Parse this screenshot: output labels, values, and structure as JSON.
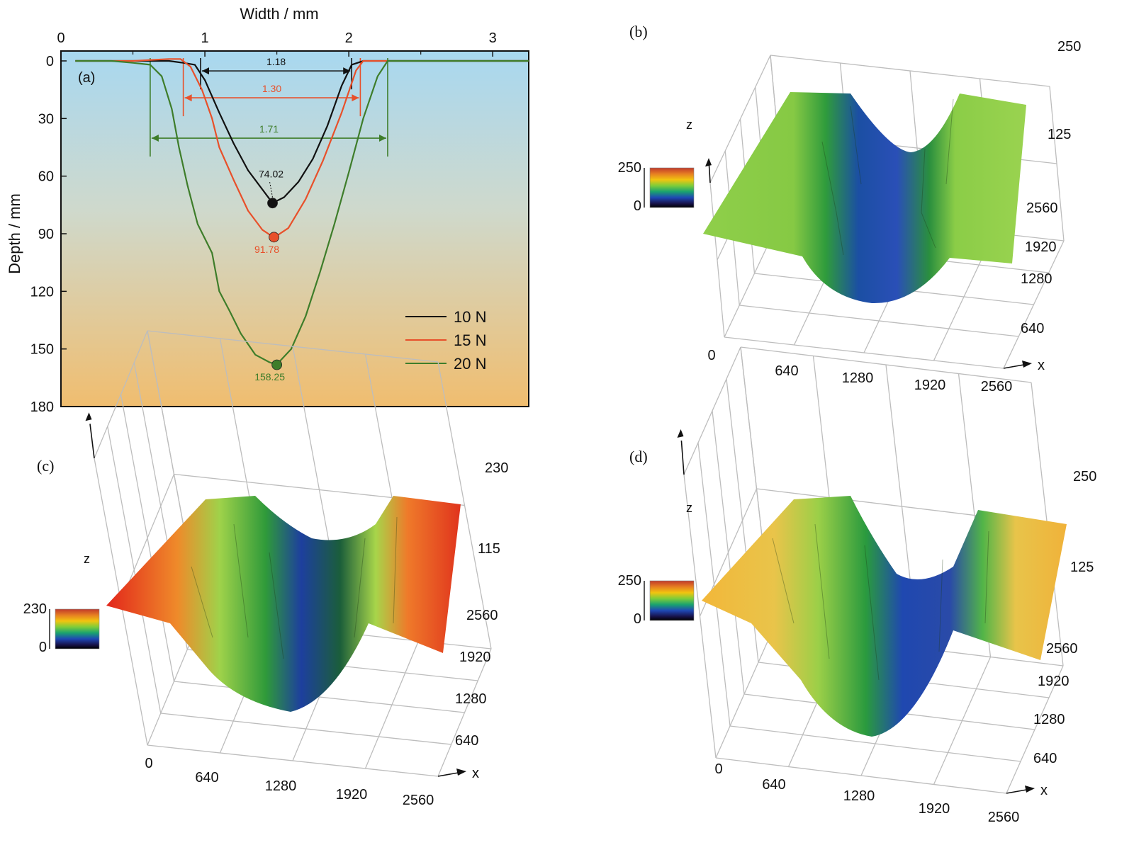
{
  "chart_data": [
    {
      "panel": "(a)",
      "type": "line",
      "xlabel": "Width / mm",
      "ylabel": "Depth / mm",
      "xlim": [
        0,
        3.25
      ],
      "ylim": [
        0,
        180
      ],
      "x_ticks": [
        "0",
        "1",
        "2",
        "3"
      ],
      "y_ticks": [
        "0",
        "30",
        "60",
        "90",
        "120",
        "150",
        "180"
      ],
      "y_inverted": true,
      "x_axis_position": "top",
      "series": [
        {
          "name": "10 N",
          "color": "#111111",
          "x": [
            0.1,
            0.5,
            0.75,
            0.85,
            0.93,
            1.0,
            1.1,
            1.2,
            1.3,
            1.4,
            1.47,
            1.55,
            1.65,
            1.75,
            1.85,
            1.95,
            2.02,
            2.1,
            2.3,
            2.6,
            3.0,
            3.25
          ],
          "y": [
            0,
            0,
            0,
            1,
            2,
            10,
            27,
            43,
            57,
            67,
            74,
            71,
            63,
            51,
            34,
            13,
            2,
            0,
            0,
            0,
            0,
            0
          ]
        },
        {
          "name": "15 N",
          "color": "#e8502a",
          "x": [
            0.1,
            0.5,
            0.75,
            0.83,
            0.9,
            0.98,
            1.05,
            1.1,
            1.2,
            1.3,
            1.4,
            1.48,
            1.58,
            1.7,
            1.82,
            1.95,
            2.05,
            2.1,
            2.3,
            2.6,
            3.0,
            3.25
          ],
          "y": [
            0,
            0,
            -1,
            -1,
            3,
            15,
            30,
            45,
            62,
            78,
            88,
            92,
            87,
            72,
            52,
            27,
            5,
            0,
            0,
            0,
            0,
            0
          ]
        },
        {
          "name": "20 N",
          "color": "#3e7d2a",
          "x": [
            0.1,
            0.35,
            0.5,
            0.62,
            0.7,
            0.77,
            0.82,
            0.88,
            0.95,
            1.05,
            1.1,
            1.17,
            1.25,
            1.35,
            1.45,
            1.5,
            1.6,
            1.7,
            1.8,
            1.9,
            2.0,
            2.1,
            2.2,
            2.27,
            2.4,
            2.6,
            3.0,
            3.25
          ],
          "y": [
            0,
            0,
            1,
            2,
            8,
            25,
            45,
            65,
            85,
            100,
            120,
            130,
            142,
            153,
            157,
            158,
            150,
            133,
            110,
            85,
            58,
            30,
            8,
            0,
            0,
            0,
            0,
            0
          ]
        }
      ],
      "markers": [
        {
          "series": "10 N",
          "x": 1.47,
          "y": 74.02,
          "label": "74.02"
        },
        {
          "series": "15 N",
          "x": 1.48,
          "y": 91.78,
          "label": "91.78"
        },
        {
          "series": "20 N",
          "x": 1.5,
          "y": 158.25,
          "label": "158.25"
        }
      ],
      "width_annotations": [
        {
          "label": "1.18",
          "x1": 0.97,
          "x2": 2.02,
          "depth": 3,
          "color": "#111111"
        },
        {
          "label": "1.30",
          "x1": 0.85,
          "x2": 2.08,
          "depth": 17,
          "color": "#e8502a"
        },
        {
          "label": "1.71",
          "x1": 0.62,
          "x2": 2.27,
          "depth": 38,
          "color": "#3e7d2a"
        }
      ],
      "colors": {
        "bg_top": "#a8d8f0",
        "bg_mid": "#cfd9cc",
        "bg_bottom": "#f0bd6f"
      }
    },
    {
      "panel": "(b)",
      "type": "surface3d",
      "x_ticks": [
        "0",
        "640",
        "1280",
        "1920",
        "2560"
      ],
      "y_ticks": [
        "640",
        "1280",
        "1920",
        "2560"
      ],
      "z_ticks": [
        "250",
        "125"
      ],
      "colorbar": {
        "max": "250",
        "min": "0"
      },
      "x_label": "x",
      "z_label": "z"
    },
    {
      "panel": "(c)",
      "type": "surface3d",
      "x_ticks": [
        "0",
        "640",
        "1280",
        "1920",
        "2560"
      ],
      "y_ticks": [
        "640",
        "1280",
        "1920",
        "2560"
      ],
      "z_ticks": [
        "230",
        "115"
      ],
      "colorbar": {
        "max": "230",
        "min": "0"
      },
      "x_label": "x",
      "z_label": "z"
    },
    {
      "panel": "(d)",
      "type": "surface3d",
      "x_ticks": [
        "0",
        "640",
        "1280",
        "1920",
        "2560"
      ],
      "y_ticks": [
        "640",
        "1280",
        "1920",
        "2560"
      ],
      "z_ticks": [
        "250",
        "125"
      ],
      "colorbar": {
        "max": "250",
        "min": "0"
      },
      "x_label": "x",
      "z_label": "z"
    }
  ]
}
